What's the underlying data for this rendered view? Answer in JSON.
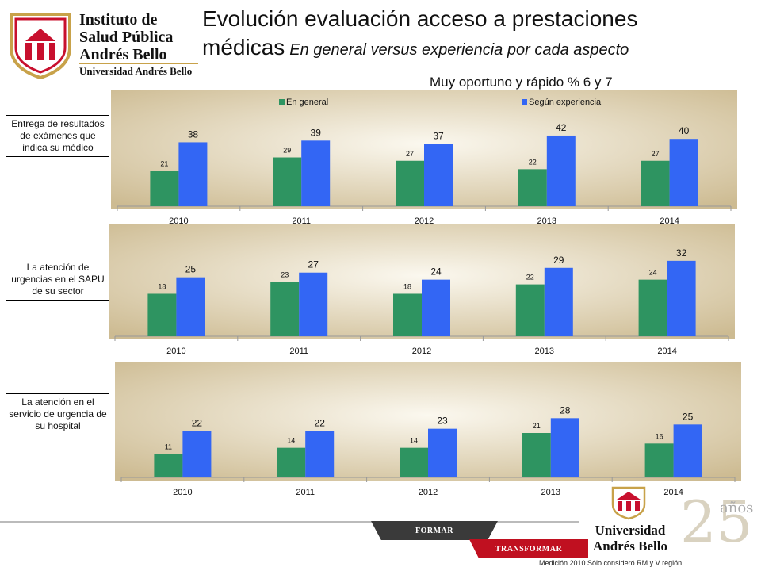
{
  "header": {
    "institute_name": [
      "Instituto de",
      "Salud Pública",
      "Andrés Bello"
    ],
    "university_name": "Universidad Andrés Bello",
    "title_line1": "Evolución evaluación acceso a prestaciones",
    "title_line2_main": "médicas",
    "title_line2_sub": "En general versus experiencia por cada aspecto",
    "metric_label": "Muy oportuno y rápido % 6 y 7"
  },
  "colors": {
    "en_general": "#2e9461",
    "segun_experiencia": "#3366f4",
    "panel_bg_edge": "#cdbb92",
    "panel_bg_center": "#fbf8ef",
    "ribbon_dark": "#3a3a3a",
    "ribbon_red": "#c01020",
    "brand_red": "#c8102e"
  },
  "row_labels": [
    "Entrega de resultados de exámenes que indica su médico",
    "La atención de urgencias en el SAPU de su sector",
    "La atención en el servicio de urgencia de su hospital"
  ],
  "chart_data": [
    {
      "type": "bar",
      "categories": [
        "2010",
        "2011",
        "2012",
        "2013",
        "2014"
      ],
      "series": [
        {
          "name": "En general",
          "values": [
            21,
            29,
            27,
            22,
            27
          ]
        },
        {
          "name": "Según experiencia",
          "values": [
            38,
            39,
            37,
            42,
            40
          ]
        }
      ],
      "legend": "top",
      "ylim": [
        0,
        50
      ]
    },
    {
      "type": "bar",
      "categories": [
        "2010",
        "2011",
        "2012",
        "2013",
        "2014"
      ],
      "series": [
        {
          "values": [
            18,
            23,
            18,
            22,
            24
          ]
        },
        {
          "values": [
            25,
            27,
            24,
            29,
            32
          ]
        }
      ],
      "ylim": [
        0,
        37
      ]
    },
    {
      "type": "bar",
      "categories": [
        "2010",
        "2011",
        "2012",
        "2013",
        "2014"
      ],
      "series": [
        {
          "values": [
            11,
            14,
            14,
            21,
            16
          ]
        },
        {
          "values": [
            22,
            22,
            23,
            28,
            25
          ]
        }
      ],
      "ylim": [
        0,
        33
      ]
    }
  ],
  "footer": {
    "ribbon_1": "FORMAR",
    "ribbon_2": "TRANSFORMAR",
    "university_line1": "Universidad",
    "university_line2": "Andrés Bello",
    "anniversary_number": "25",
    "anniversary_word": "años",
    "footnote": "Medición 2010 Sólo consideró RM y V región"
  }
}
